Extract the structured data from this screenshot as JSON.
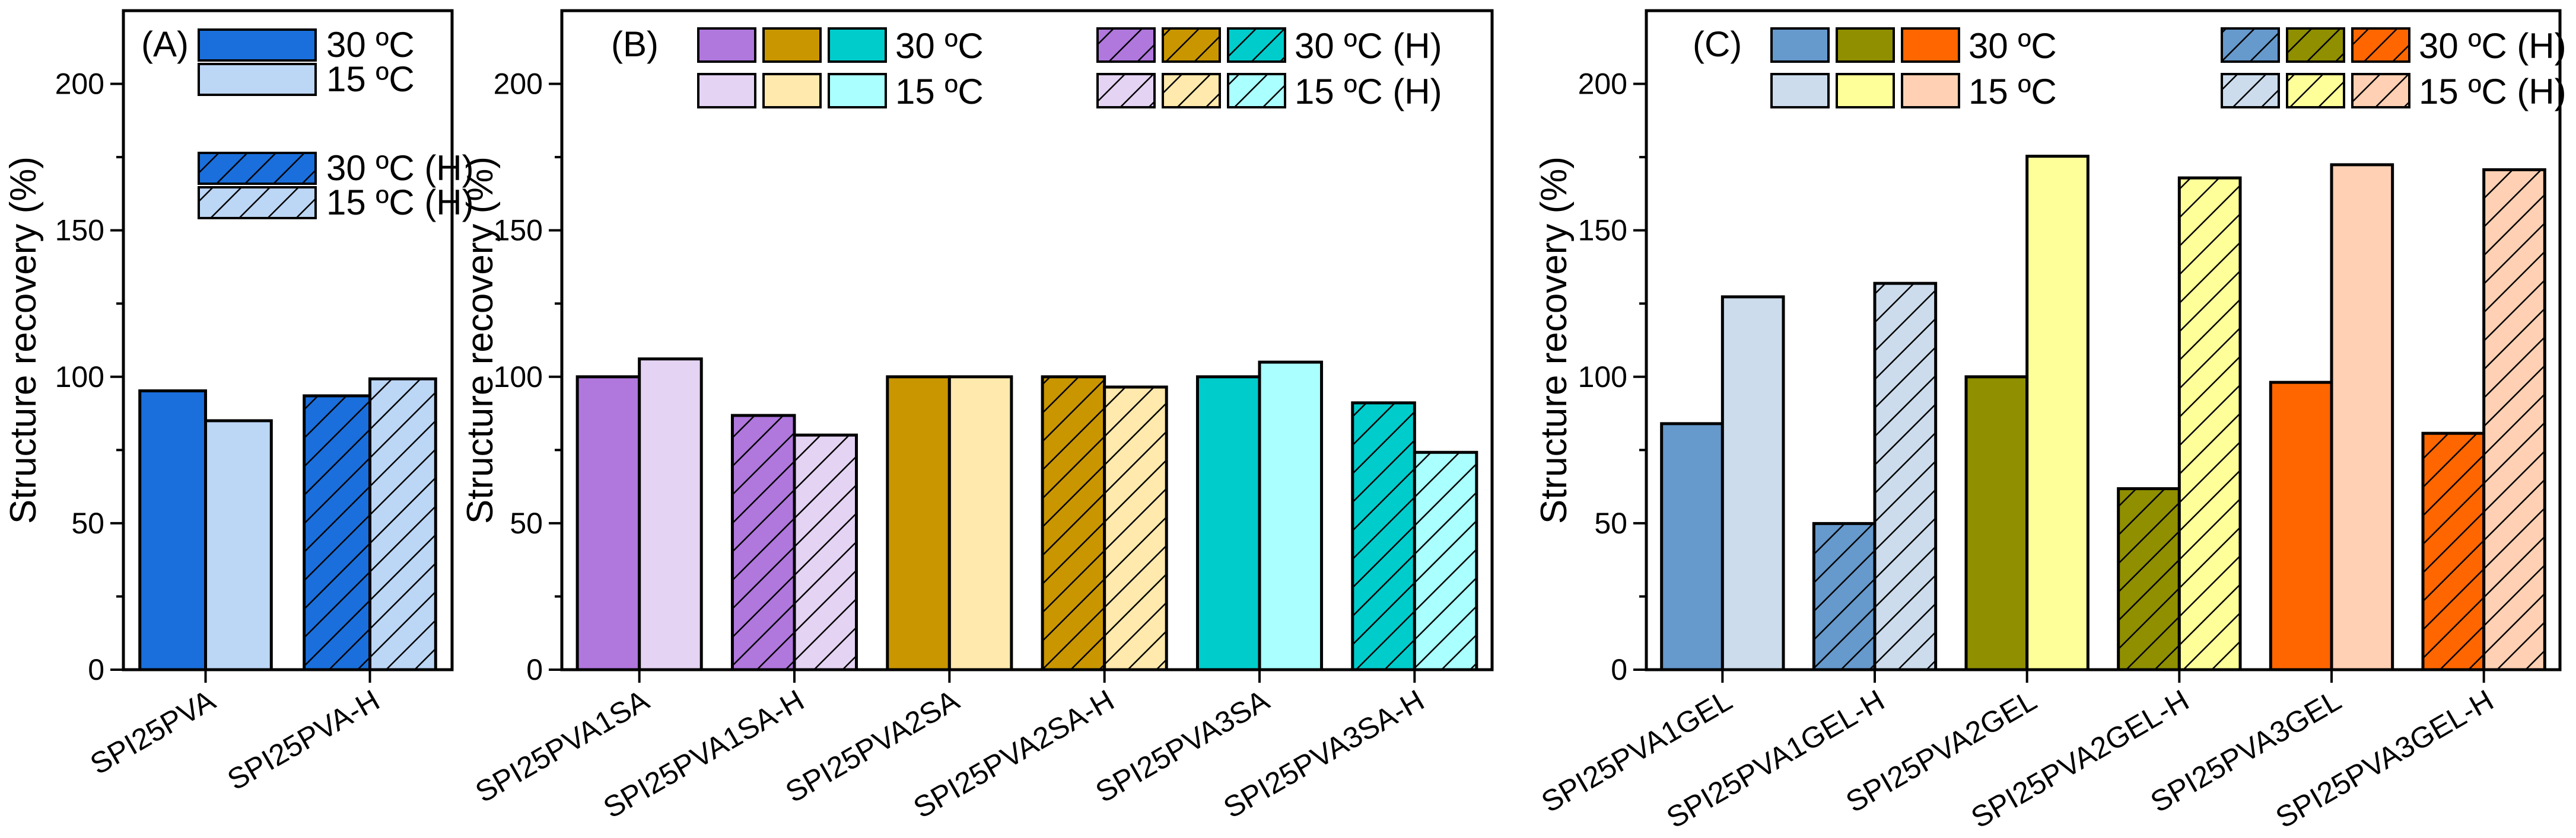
{
  "chart_data": [
    {
      "type": "bar",
      "panel_label": "(A)",
      "ylabel": "Structure recovery (%)",
      "ylim": [
        0,
        225
      ],
      "yticks": [
        "0",
        "50",
        "100",
        "150",
        "200"
      ],
      "categories": [
        "SPI25PVA",
        "SPI25PVA-H"
      ],
      "legend": [
        {
          "label": "30 ºC",
          "colors": [
            "#1a6fdc"
          ],
          "hatched": false
        },
        {
          "label": "15 ºC",
          "colors": [
            "#bcd6f5"
          ],
          "hatched": false
        },
        {
          "label": "30 ºC (H)",
          "colors": [
            "#1a6fdc"
          ],
          "hatched": true
        },
        {
          "label": "15 ºC (H)",
          "colors": [
            "#bcd6f5"
          ],
          "hatched": true
        }
      ],
      "series": [
        {
          "name": "30 ºC",
          "values": [
            95.2,
            93.5
          ],
          "colors": [
            "#1a6fdc",
            "#1a6fdc"
          ],
          "hatched": [
            false,
            true
          ]
        },
        {
          "name": "15 ºC",
          "values": [
            85.0,
            99.3
          ],
          "colors": [
            "#bcd6f5",
            "#bcd6f5"
          ],
          "hatched": [
            false,
            true
          ]
        }
      ]
    },
    {
      "type": "bar",
      "panel_label": "(B)",
      "ylabel": "Structure recovery (%)",
      "ylim": [
        0,
        225
      ],
      "yticks": [
        "0",
        "50",
        "100",
        "150",
        "200"
      ],
      "categories": [
        "SPI25PVA1SA",
        "SPI25PVA1SA-H",
        "SPI25PVA2SA",
        "SPI25PVA2SA-H",
        "SPI25PVA3SA",
        "SPI25PVA3SA-H"
      ],
      "legend": [
        {
          "label": "30 ºC",
          "colors": [
            "#b077dd",
            "#c99600",
            "#00cccc"
          ],
          "hatched": false
        },
        {
          "label": "15 ºC",
          "colors": [
            "#e4d3f3",
            "#ffe9ad",
            "#aaffff"
          ],
          "hatched": false
        },
        {
          "label": "30 ºC (H)",
          "colors": [
            "#b077dd",
            "#c99600",
            "#00cccc"
          ],
          "hatched": true
        },
        {
          "label": "15 ºC (H)",
          "colors": [
            "#e4d3f3",
            "#ffe9ad",
            "#aaffff"
          ],
          "hatched": true
        }
      ],
      "series": [
        {
          "name": "30 ºC",
          "values": [
            100,
            86.8,
            100,
            100,
            100,
            91.1
          ],
          "colors": [
            "#b077dd",
            "#b077dd",
            "#c99600",
            "#c99600",
            "#00cccc",
            "#00cccc"
          ],
          "hatched": [
            false,
            true,
            false,
            true,
            false,
            true
          ]
        },
        {
          "name": "15 ºC",
          "values": [
            106.1,
            80.1,
            100,
            96.5,
            105.0,
            74.2
          ],
          "colors": [
            "#e4d3f3",
            "#e4d3f3",
            "#ffe9ad",
            "#ffe9ad",
            "#aaffff",
            "#aaffff"
          ],
          "hatched": [
            false,
            true,
            false,
            true,
            false,
            true
          ]
        }
      ]
    },
    {
      "type": "bar",
      "panel_label": "(C)",
      "ylabel": "Structure recovery (%)",
      "ylim": [
        0,
        225
      ],
      "yticks": [
        "0",
        "50",
        "100",
        "150",
        "200"
      ],
      "categories": [
        "SPI25PVA1GEL",
        "SPI25PVA1GEL-H",
        "SPI25PVA2GEL",
        "SPI25PVA2GEL-H",
        "SPI25PVA3GEL",
        "SPI25PVA3GEL-H"
      ],
      "legend": [
        {
          "label": "30 ºC",
          "colors": [
            "#6699cc",
            "#8f8f00",
            "#ff6600"
          ],
          "hatched": false
        },
        {
          "label": "15 ºC",
          "colors": [
            "#ccdcec",
            "#ffff99",
            "#ffd0b3"
          ],
          "hatched": false
        },
        {
          "label": "30 ºC (H)",
          "colors": [
            "#6699cc",
            "#8f8f00",
            "#ff6600"
          ],
          "hatched": true
        },
        {
          "label": "15 ºC (H)",
          "colors": [
            "#ccdcec",
            "#ffff99",
            "#ffd0b3"
          ],
          "hatched": true
        }
      ],
      "series": [
        {
          "name": "30 ºC",
          "values": [
            84.0,
            49.9,
            100,
            61.8,
            98.1,
            80.7
          ],
          "colors": [
            "#6699cc",
            "#6699cc",
            "#8f8f00",
            "#8f8f00",
            "#ff6600",
            "#ff6600"
          ],
          "hatched": [
            false,
            true,
            false,
            true,
            false,
            true
          ]
        },
        {
          "name": "15 ºC",
          "values": [
            127.3,
            131.9,
            175.3,
            167.9,
            172.4,
            170.7
          ],
          "colors": [
            "#ccdcec",
            "#ccdcec",
            "#ffff99",
            "#ffff99",
            "#ffd0b3",
            "#ffd0b3"
          ],
          "hatched": [
            false,
            true,
            false,
            true,
            false,
            true
          ]
        }
      ]
    }
  ]
}
